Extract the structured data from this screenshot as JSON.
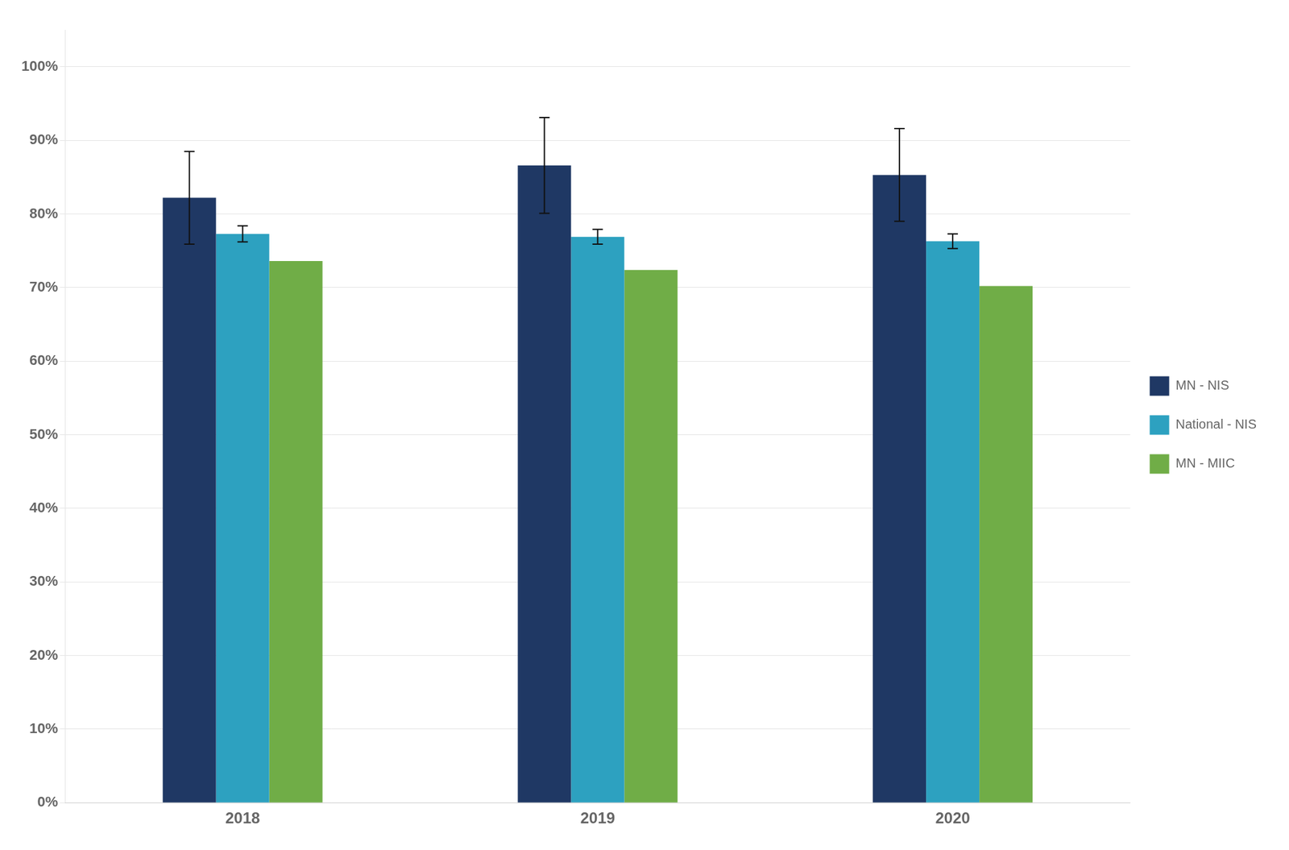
{
  "chart_data": {
    "type": "bar",
    "categories": [
      "2018",
      "2019",
      "2020"
    ],
    "series": [
      {
        "name": "MN - NIS",
        "color": "#1F3864",
        "values": [
          0.822,
          0.866,
          0.853
        ],
        "errors": [
          0.063,
          0.065,
          0.063
        ]
      },
      {
        "name": "National - NIS",
        "color": "#2DA1C0",
        "values": [
          0.773,
          0.769,
          0.763
        ],
        "errors": [
          0.011,
          0.01,
          0.01
        ]
      },
      {
        "name": "MN - MIIC",
        "color": "#70AD47",
        "values": [
          0.736,
          0.724,
          0.702
        ]
      }
    ],
    "ylim": [
      0.0,
      1.05
    ],
    "yticks": [
      {
        "value": 0.0,
        "label": "0%"
      },
      {
        "value": 0.1,
        "label": "10%"
      },
      {
        "value": 0.2,
        "label": "20%"
      },
      {
        "value": 0.3,
        "label": "30%"
      },
      {
        "value": 0.4,
        "label": "40%"
      },
      {
        "value": 0.5,
        "label": "50%"
      },
      {
        "value": 0.6,
        "label": "60%"
      },
      {
        "value": 0.7,
        "label": "70%"
      },
      {
        "value": 0.8,
        "label": "80%"
      },
      {
        "value": 0.9,
        "label": "90%"
      },
      {
        "value": 1.0,
        "label": "100%"
      }
    ],
    "grid": true,
    "legend": "right"
  }
}
